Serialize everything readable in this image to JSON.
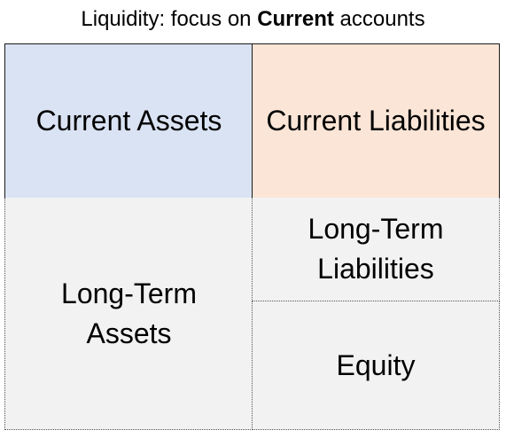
{
  "title": {
    "prefix": "Liquidity: focus on ",
    "emphasis": "Current",
    "suffix": " accounts"
  },
  "boxes": {
    "current_assets": {
      "label": "Current Assets",
      "fill": "#dae3f3"
    },
    "current_liabilities": {
      "label": "Current Liabilities",
      "fill": "#fbe5d6"
    },
    "long_term_assets": {
      "line1": "Long-Term",
      "line2": "Assets",
      "fill": "#f2f2f2"
    },
    "long_term_liabilities": {
      "line1": "Long-Term",
      "line2": "Liabilities",
      "fill": "#f2f2f2"
    },
    "equity": {
      "label": "Equity",
      "fill": "#f2f2f2"
    }
  }
}
